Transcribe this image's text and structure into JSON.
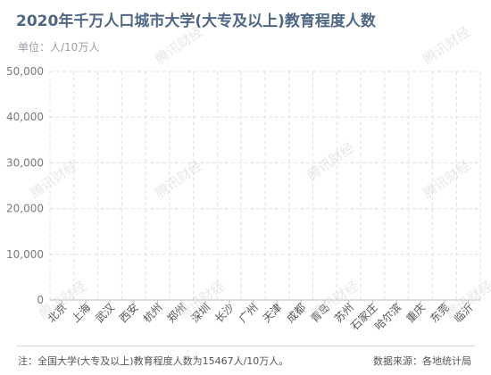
{
  "header": {
    "title": "2020年千万人口城市大学(大专及以上)教育程度人数",
    "unit": "单位：人/10万人"
  },
  "watermark": "腾讯财经",
  "footer": {
    "note": "注：全国大学(大专及以上)教育程度人数为15467人/10万人。",
    "source": "数据来源：各地统计局"
  },
  "chart_data": {
    "type": "bar",
    "categories": [
      "北京",
      "上海",
      "武汉",
      "西安",
      "杭州",
      "郑州",
      "深圳",
      "长沙",
      "广州",
      "天津",
      "成都",
      "青岛",
      "苏州",
      "石家庄",
      "哈尔滨",
      "重庆",
      "东莞",
      "临沂"
    ],
    "values": [
      0,
      0,
      0,
      0,
      0,
      0,
      0,
      0,
      0,
      0,
      0,
      0,
      0,
      0,
      0,
      0,
      0,
      0
    ],
    "yticks": [
      0,
      10000,
      20000,
      30000,
      40000,
      50000
    ],
    "ytick_labels": [
      "0",
      "10,000",
      "20,000",
      "30,000",
      "40,000",
      "50,000"
    ],
    "ylim": [
      0,
      50000
    ],
    "grid": true,
    "colors": {
      "grid": "#e0e0e0",
      "axis": "#bdbdbd",
      "tick_text": "#7a7a7a",
      "bar": "#4f6785"
    }
  }
}
